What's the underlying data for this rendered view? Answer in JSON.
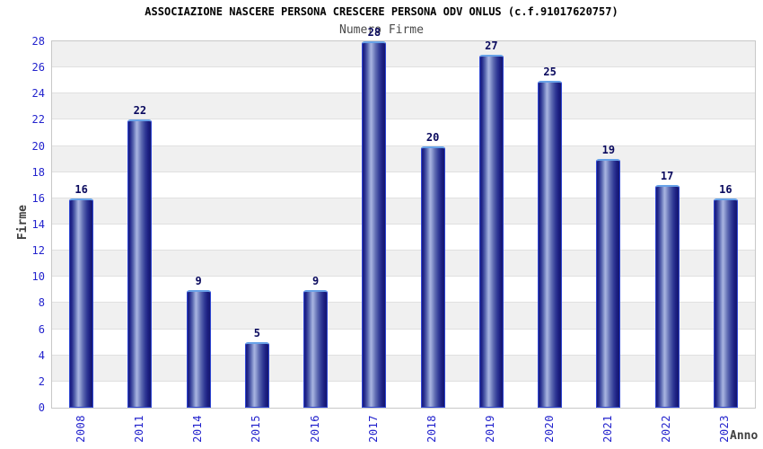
{
  "header": {
    "title": "ASSOCIAZIONE NASCERE PERSONA CRESCERE PERSONA ODV ONLUS (c.f.91017620757)",
    "subtitle": "Numero Firme"
  },
  "chart_data": {
    "type": "bar",
    "title": "ASSOCIAZIONE NASCERE PERSONA CRESCERE PERSONA ODV ONLUS (c.f.91017620757)",
    "subtitle": "Numero Firme",
    "categories": [
      "2008",
      "2011",
      "2014",
      "2015",
      "2016",
      "2017",
      "2018",
      "2019",
      "2020",
      "2021",
      "2022",
      "2023"
    ],
    "values": [
      16,
      22,
      9,
      5,
      9,
      28,
      20,
      27,
      25,
      19,
      17,
      16
    ],
    "xlabel": "Anno",
    "ylabel": "Firme",
    "ylim": [
      0,
      28
    ],
    "ytick_step": 2,
    "grid": true,
    "legend_position": "none",
    "colors": {
      "bar_border": "#2f46d2",
      "bar_border_top": "#68a2e8",
      "bar_dark": "#15176e",
      "bar_highlight": "#a9b4e0",
      "tick_text": "#2323cd",
      "value_text": "#0a0a5e",
      "axis_title_text": "#404040",
      "band_white": "#ffffff",
      "band_gray": "#f0f0f0",
      "gridline": "#e0e0e0",
      "plot_border": "#c8c8c8"
    }
  }
}
